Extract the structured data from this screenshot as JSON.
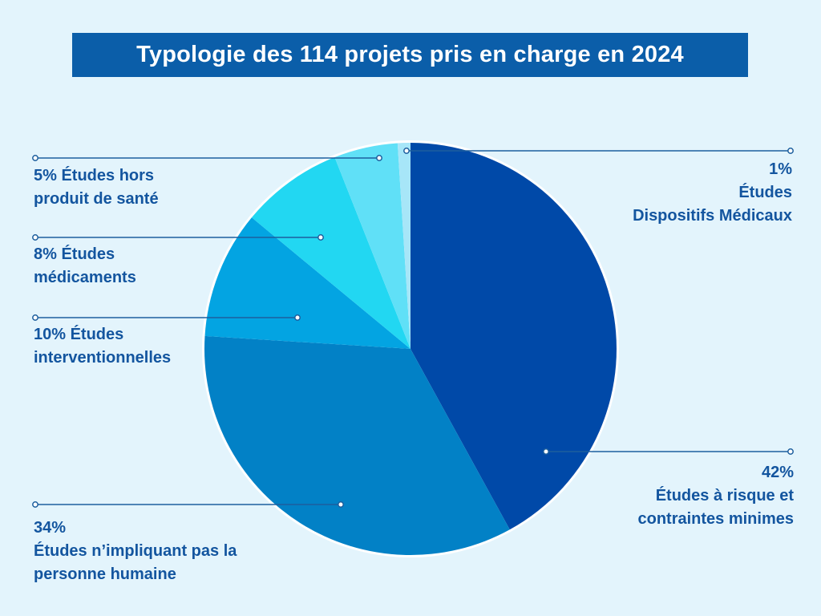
{
  "title": "Typologie des 114 projets pris en charge en 2024",
  "colors": {
    "background": "#e3f4fc",
    "title_bg": "#0b5ea9",
    "label_text": "#13559f",
    "leader_line": "#1d5f9e"
  },
  "chart_data": {
    "type": "pie",
    "title": "Typologie des 114 projets pris en charge en 2024",
    "unit": "%",
    "slices": [
      {
        "id": "risque",
        "value": 42,
        "pct_label": "42%",
        "lines": [
          "Études à risque et",
          "contraintes minimes"
        ],
        "color": "#0049a8"
      },
      {
        "id": "non-humaine",
        "value": 34,
        "pct_label": "34%",
        "lines": [
          "Études n’impliquant pas la",
          "personne humaine"
        ],
        "color": "#0281c6"
      },
      {
        "id": "interventionnelles",
        "value": 10,
        "pct_label": "10%",
        "lines": [
          "Études",
          "interventionnelles"
        ],
        "color": "#03a4e2"
      },
      {
        "id": "medicaments",
        "value": 8,
        "pct_label": "8%",
        "lines": [
          "Études",
          "médicaments"
        ],
        "color": "#22d7f2"
      },
      {
        "id": "hors-produit",
        "value": 5,
        "pct_label": "5%",
        "lines": [
          "Études hors",
          "produit de santé"
        ],
        "color": "#60e0f7"
      },
      {
        "id": "dispositifs",
        "value": 1,
        "pct_label": "1%",
        "lines": [
          "Études",
          "Dispositifs Médicaux"
        ],
        "color": "#a7e6f8"
      }
    ],
    "label_texts": {
      "risque": [
        "42%",
        "Études à risque et",
        "contraintes minimes"
      ],
      "non-humaine": [
        "34%",
        "Études n’impliquant pas la",
        "personne humaine"
      ],
      "interventionnelles": [
        "10% Études",
        "interventionnelles"
      ],
      "medicaments": [
        "8% Études",
        "médicaments"
      ],
      "hors-produit": [
        "5% Études hors",
        "produit de santé"
      ],
      "dispositifs": [
        "1%",
        "Études",
        "Dispositifs Médicaux"
      ]
    }
  }
}
